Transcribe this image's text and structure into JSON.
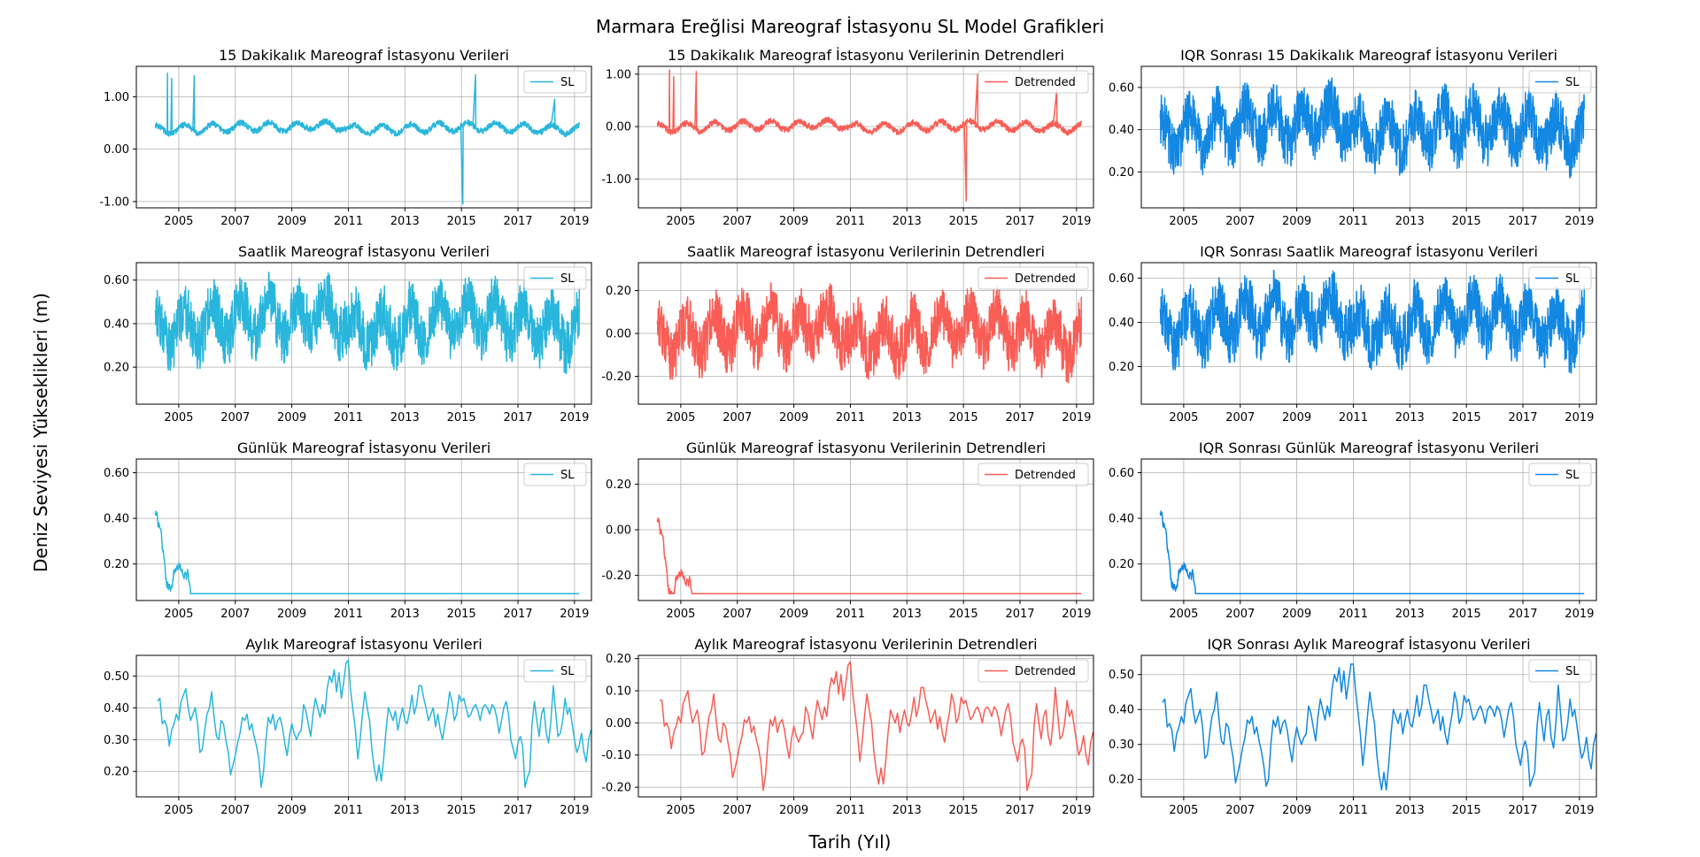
{
  "figure": {
    "title": "Marmara Ereğlisi Mareograf İstasyonu SL Model Grafikleri",
    "xlabel": "Tarih (Yıl)",
    "ylabel": "Deniz Seviyesi Yükseklikleri (m)"
  },
  "colors": {
    "sl": "#29b6dc",
    "detrended": "#f95d55",
    "iqr": "#1388e2"
  },
  "chart_data": [
    {
      "type": "line",
      "title": "15 Dakikalık Mareograf İstasyonu Verileri",
      "legend": "SL",
      "legend_position": "upper right",
      "color": "#29b6dc",
      "grid": true,
      "xlim": [
        2003.5,
        2019.6
      ],
      "ylim": [
        -1.12,
        1.58
      ],
      "yticks": [
        -1.0,
        0.0,
        1.0
      ],
      "ytick_labels": [
        "-1.00",
        "0.00",
        "1.00"
      ],
      "xticks": [
        2005,
        2007,
        2009,
        2011,
        2013,
        2015,
        2017,
        2019
      ],
      "base": 0.4,
      "amp": 0.2,
      "smooth": 1,
      "noise": 0.5,
      "start": 2004.17,
      "end": 2019.17,
      "spikes": [
        [
          2004.6,
          1.45
        ],
        [
          2004.75,
          1.35
        ],
        [
          2005.55,
          1.4
        ],
        [
          2015.05,
          -1.05
        ],
        [
          2015.5,
          1.42
        ],
        [
          2018.3,
          0.95
        ]
      ]
    },
    {
      "type": "line",
      "title": "15 Dakikalık Mareograf İstasyonu Verilerinin Detrendleri",
      "legend": "Detrended",
      "legend_position": "upper right",
      "color": "#f95d55",
      "grid": true,
      "xlim": [
        2003.5,
        2019.6
      ],
      "ylim": [
        -1.55,
        1.15
      ],
      "yticks": [
        -1.0,
        0.0,
        1.0
      ],
      "ytick_labels": [
        "-1.00",
        "0.00",
        "1.00"
      ],
      "xticks": [
        2005,
        2007,
        2009,
        2011,
        2013,
        2015,
        2017,
        2019
      ],
      "base": 0.0,
      "amp": 0.2,
      "smooth": 1,
      "noise": 0.5,
      "start": 2004.17,
      "end": 2019.17,
      "spikes": [
        [
          2004.6,
          1.08
        ],
        [
          2004.75,
          0.95
        ],
        [
          2005.55,
          1.05
        ],
        [
          2015.1,
          -1.42
        ],
        [
          2015.5,
          1.0
        ],
        [
          2018.3,
          0.7
        ]
      ]
    },
    {
      "type": "line",
      "title": "IQR Sonrası 15 Dakikalık Mareograf İstasyonu Verileri",
      "legend": "SL",
      "legend_position": "upper right",
      "color": "#1388e2",
      "grid": true,
      "xlim": [
        2003.5,
        2019.6
      ],
      "ylim": [
        0.03,
        0.7
      ],
      "yticks": [
        0.2,
        0.4,
        0.6
      ],
      "ytick_labels": [
        "0.20",
        "0.40",
        "0.60"
      ],
      "xticks": [
        2005,
        2007,
        2009,
        2011,
        2013,
        2015,
        2017,
        2019
      ],
      "base": 0.4,
      "amp": 0.2,
      "smooth": 1,
      "noise": 1.15,
      "clip": [
        0.05,
        0.66
      ],
      "start": 2004.17,
      "end": 2019.17
    },
    {
      "type": "line",
      "title": "Saatlik Mareograf İstasyonu Verileri",
      "legend": "SL",
      "legend_position": "upper right",
      "color": "#29b6dc",
      "grid": true,
      "xlim": [
        2003.5,
        2019.6
      ],
      "ylim": [
        0.03,
        0.68
      ],
      "yticks": [
        0.2,
        0.4,
        0.6
      ],
      "ytick_labels": [
        "0.20",
        "0.40",
        "0.60"
      ],
      "xticks": [
        2005,
        2007,
        2009,
        2011,
        2013,
        2015,
        2017,
        2019
      ],
      "base": 0.4,
      "amp": 0.2,
      "smooth": 1,
      "noise": 1.15,
      "clip": [
        0.05,
        0.66
      ],
      "start": 2004.17,
      "end": 2019.17
    },
    {
      "type": "line",
      "title": "Saatlik Mareograf İstasyonu Verilerinin Detrendleri",
      "legend": "Detrended",
      "legend_position": "upper right",
      "color": "#f95d55",
      "grid": true,
      "xlim": [
        2003.5,
        2019.6
      ],
      "ylim": [
        -0.33,
        0.33
      ],
      "yticks": [
        -0.2,
        0.0,
        0.2
      ],
      "ytick_labels": [
        "-0.20",
        "0.00",
        "0.20"
      ],
      "xticks": [
        2005,
        2007,
        2009,
        2011,
        2013,
        2015,
        2017,
        2019
      ],
      "base": 0.0,
      "amp": 0.2,
      "smooth": 1,
      "noise": 1.15,
      "clip": [
        -0.3,
        0.3
      ],
      "start": 2004.17,
      "end": 2019.17
    },
    {
      "type": "line",
      "title": "IQR Sonrası Saatlik Mareograf İstasyonu Verileri",
      "legend": "SL",
      "legend_position": "upper right",
      "color": "#1388e2",
      "grid": true,
      "xlim": [
        2003.5,
        2019.6
      ],
      "ylim": [
        0.03,
        0.67
      ],
      "yticks": [
        0.2,
        0.4,
        0.6
      ],
      "ytick_labels": [
        "0.20",
        "0.40",
        "0.60"
      ],
      "xticks": [
        2005,
        2007,
        2009,
        2011,
        2013,
        2015,
        2017,
        2019
      ],
      "base": 0.4,
      "amp": 0.2,
      "smooth": 1,
      "noise": 1.15,
      "clip": [
        0.05,
        0.65
      ],
      "start": 2004.17,
      "end": 2019.17
    },
    {
      "type": "line",
      "title": "Günlük Mareograf İstasyonu Verileri",
      "legend": "SL",
      "legend_position": "upper right",
      "color": "#29b6dc",
      "grid": true,
      "xlim": [
        2003.5,
        2019.6
      ],
      "ylim": [
        0.04,
        0.66
      ],
      "yticks": [
        0.2,
        0.4,
        0.6
      ],
      "ytick_labels": [
        "0.20",
        "0.40",
        "0.60"
      ],
      "xticks": [
        2005,
        2007,
        2009,
        2011,
        2013,
        2015,
        2017,
        2019
      ],
      "base": 0.38,
      "amp": 0.16,
      "smooth": 4,
      "noise": 0.75,
      "clip": [
        0.07,
        0.63
      ],
      "start": 2004.17,
      "end": 2019.17
    },
    {
      "type": "line",
      "title": "Günlük Mareograf İstasyonu Verilerinin Detrendleri",
      "legend": "Detrended",
      "legend_position": "upper right",
      "color": "#f95d55",
      "grid": true,
      "xlim": [
        2003.5,
        2019.6
      ],
      "ylim": [
        -0.31,
        0.31
      ],
      "yticks": [
        -0.2,
        0.0,
        0.2
      ],
      "ytick_labels": [
        "-0.20",
        "0.00",
        "0.20"
      ],
      "xticks": [
        2005,
        2007,
        2009,
        2011,
        2013,
        2015,
        2017,
        2019
      ],
      "base": 0.0,
      "amp": 0.16,
      "smooth": 4,
      "noise": 0.75,
      "clip": [
        -0.28,
        0.28
      ],
      "start": 2004.17,
      "end": 2019.17
    },
    {
      "type": "line",
      "title": "IQR Sonrası Günlük Mareograf İstasyonu Verileri",
      "legend": "SL",
      "legend_position": "upper right",
      "color": "#1388e2",
      "grid": true,
      "xlim": [
        2003.5,
        2019.6
      ],
      "ylim": [
        0.04,
        0.66
      ],
      "yticks": [
        0.2,
        0.4,
        0.6
      ],
      "ytick_labels": [
        "0.20",
        "0.40",
        "0.60"
      ],
      "xticks": [
        2005,
        2007,
        2009,
        2011,
        2013,
        2015,
        2017,
        2019
      ],
      "base": 0.38,
      "amp": 0.16,
      "smooth": 4,
      "noise": 0.75,
      "clip": [
        0.07,
        0.63
      ],
      "start": 2004.17,
      "end": 2019.17
    },
    {
      "type": "line",
      "title": "Aylık Mareograf İstasyonu Verileri",
      "legend": "SL",
      "legend_position": "upper right",
      "color": "#29b6dc",
      "grid": true,
      "xlim": [
        2003.5,
        2019.6
      ],
      "ylim": [
        0.12,
        0.565
      ],
      "yticks": [
        0.2,
        0.3,
        0.4,
        0.5
      ],
      "ytick_labels": [
        "0.20",
        "0.30",
        "0.40",
        "0.50"
      ],
      "xticks": [
        2005,
        2007,
        2009,
        2011,
        2013,
        2015,
        2017,
        2019
      ],
      "x_start": 2004.25,
      "x_step": 0.08333,
      "y": [
        0.42,
        0.43,
        0.35,
        0.36,
        0.34,
        0.28,
        0.33,
        0.35,
        0.38,
        0.36,
        0.42,
        0.44,
        0.46,
        0.4,
        0.36,
        0.38,
        0.4,
        0.35,
        0.26,
        0.27,
        0.33,
        0.38,
        0.4,
        0.45,
        0.37,
        0.31,
        0.3,
        0.36,
        0.35,
        0.3,
        0.26,
        0.19,
        0.22,
        0.25,
        0.29,
        0.32,
        0.37,
        0.36,
        0.38,
        0.33,
        0.35,
        0.31,
        0.28,
        0.24,
        0.15,
        0.2,
        0.3,
        0.37,
        0.35,
        0.38,
        0.33,
        0.36,
        0.37,
        0.34,
        0.29,
        0.25,
        0.31,
        0.35,
        0.32,
        0.3,
        0.32,
        0.33,
        0.41,
        0.39,
        0.35,
        0.31,
        0.38,
        0.43,
        0.4,
        0.37,
        0.41,
        0.38,
        0.46,
        0.5,
        0.48,
        0.52,
        0.45,
        0.51,
        0.43,
        0.48,
        0.54,
        0.55,
        0.45,
        0.39,
        0.33,
        0.24,
        0.3,
        0.38,
        0.45,
        0.4,
        0.36,
        0.27,
        0.21,
        0.17,
        0.22,
        0.17,
        0.24,
        0.33,
        0.4,
        0.38,
        0.36,
        0.39,
        0.33,
        0.37,
        0.4,
        0.36,
        0.35,
        0.39,
        0.44,
        0.38,
        0.41,
        0.47,
        0.47,
        0.43,
        0.4,
        0.36,
        0.38,
        0.4,
        0.34,
        0.38,
        0.33,
        0.3,
        0.35,
        0.39,
        0.45,
        0.42,
        0.36,
        0.38,
        0.44,
        0.42,
        0.43,
        0.4,
        0.37,
        0.38,
        0.4,
        0.41,
        0.39,
        0.36,
        0.4,
        0.41,
        0.4,
        0.38,
        0.41,
        0.4,
        0.37,
        0.32,
        0.36,
        0.4,
        0.42,
        0.38,
        0.3,
        0.27,
        0.24,
        0.29,
        0.31,
        0.28,
        0.15,
        0.18,
        0.2,
        0.35,
        0.42,
        0.36,
        0.31,
        0.38,
        0.4,
        0.32,
        0.29,
        0.36,
        0.47,
        0.39,
        0.31,
        0.32,
        0.36,
        0.43,
        0.38,
        0.4,
        0.35,
        0.3,
        0.26,
        0.28,
        0.32,
        0.26,
        0.23,
        0.3,
        0.33,
        0.31,
        0.28
      ]
    },
    {
      "type": "line",
      "title": "Aylık Mareograf İstasyonu Verilerinin Detrendleri",
      "legend": "Detrended",
      "legend_position": "upper right",
      "color": "#f95d55",
      "grid": true,
      "xlim": [
        2003.5,
        2019.6
      ],
      "ylim": [
        -0.23,
        0.21
      ],
      "yticks": [
        -0.2,
        -0.1,
        0.0,
        0.1,
        0.2
      ],
      "ytick_labels": [
        "-0.20",
        "-0.10",
        "0.00",
        "0.10",
        "0.20"
      ],
      "xticks": [
        2005,
        2007,
        2009,
        2011,
        2013,
        2015,
        2017,
        2019
      ],
      "x_start": 2004.25,
      "x_step": 0.08333,
      "y": [
        0.07,
        0.07,
        -0.01,
        0.0,
        -0.02,
        -0.08,
        -0.03,
        -0.01,
        0.02,
        0.0,
        0.06,
        0.08,
        0.1,
        0.04,
        0.0,
        0.02,
        0.04,
        -0.01,
        -0.1,
        -0.09,
        -0.03,
        0.02,
        0.04,
        0.09,
        0.01,
        -0.05,
        -0.06,
        0.0,
        -0.01,
        -0.06,
        -0.1,
        -0.17,
        -0.14,
        -0.11,
        -0.07,
        -0.04,
        0.01,
        0.0,
        0.02,
        -0.03,
        -0.01,
        -0.05,
        -0.08,
        -0.12,
        -0.21,
        -0.16,
        -0.06,
        0.01,
        -0.01,
        0.02,
        -0.03,
        0.0,
        0.01,
        -0.02,
        -0.07,
        -0.11,
        -0.05,
        -0.01,
        -0.04,
        -0.06,
        -0.04,
        -0.03,
        0.05,
        0.03,
        -0.01,
        -0.05,
        0.02,
        0.07,
        0.04,
        0.01,
        0.05,
        0.02,
        0.1,
        0.14,
        0.12,
        0.16,
        0.09,
        0.15,
        0.07,
        0.12,
        0.18,
        0.19,
        0.09,
        0.03,
        -0.03,
        -0.12,
        -0.06,
        0.02,
        0.09,
        0.04,
        0.0,
        -0.09,
        -0.15,
        -0.19,
        -0.14,
        -0.19,
        -0.12,
        -0.03,
        0.04,
        0.02,
        0.0,
        0.03,
        -0.03,
        0.01,
        0.04,
        0.0,
        -0.01,
        0.03,
        0.08,
        0.02,
        0.05,
        0.11,
        0.11,
        0.07,
        0.04,
        0.0,
        0.02,
        0.04,
        -0.02,
        0.02,
        -0.03,
        -0.06,
        -0.01,
        0.03,
        0.09,
        0.06,
        0.0,
        0.02,
        0.08,
        0.06,
        0.07,
        0.04,
        0.01,
        0.02,
        0.04,
        0.05,
        0.03,
        0.0,
        0.04,
        0.05,
        0.04,
        0.02,
        0.05,
        0.04,
        0.01,
        -0.04,
        0.0,
        0.04,
        0.06,
        0.02,
        -0.06,
        -0.09,
        -0.12,
        -0.07,
        -0.05,
        -0.08,
        -0.21,
        -0.18,
        -0.16,
        -0.01,
        0.06,
        0.0,
        -0.05,
        0.02,
        0.04,
        -0.04,
        -0.07,
        0.0,
        0.11,
        0.03,
        -0.05,
        -0.04,
        0.0,
        0.07,
        0.02,
        0.04,
        -0.01,
        -0.06,
        -0.1,
        -0.08,
        -0.04,
        -0.1,
        -0.13,
        -0.06,
        -0.03,
        -0.05,
        -0.08
      ]
    },
    {
      "type": "line",
      "title": "IQR Sonrası Aylık Mareograf İstasyonu Verileri",
      "legend": "SL",
      "legend_position": "upper right",
      "color": "#1388e2",
      "grid": true,
      "xlim": [
        2003.5,
        2019.6
      ],
      "ylim": [
        0.15,
        0.555
      ],
      "yticks": [
        0.2,
        0.3,
        0.4,
        0.5
      ],
      "ytick_labels": [
        "0.20",
        "0.30",
        "0.40",
        "0.50"
      ],
      "xticks": [
        2005,
        2007,
        2009,
        2011,
        2013,
        2015,
        2017,
        2019
      ],
      "x_start": 2004.25,
      "x_step": 0.08333,
      "y": [
        0.42,
        0.43,
        0.35,
        0.36,
        0.34,
        0.28,
        0.33,
        0.35,
        0.38,
        0.36,
        0.42,
        0.44,
        0.46,
        0.4,
        0.36,
        0.38,
        0.4,
        0.35,
        0.26,
        0.27,
        0.33,
        0.38,
        0.4,
        0.45,
        0.37,
        0.31,
        0.3,
        0.36,
        0.35,
        0.3,
        0.26,
        0.19,
        0.22,
        0.25,
        0.29,
        0.32,
        0.37,
        0.36,
        0.38,
        0.33,
        0.35,
        0.31,
        0.28,
        0.24,
        0.18,
        0.2,
        0.3,
        0.37,
        0.35,
        0.38,
        0.33,
        0.36,
        0.37,
        0.34,
        0.29,
        0.25,
        0.31,
        0.35,
        0.32,
        0.3,
        0.32,
        0.33,
        0.41,
        0.39,
        0.35,
        0.31,
        0.38,
        0.43,
        0.4,
        0.37,
        0.41,
        0.38,
        0.46,
        0.5,
        0.48,
        0.52,
        0.45,
        0.51,
        0.43,
        0.48,
        0.53,
        0.53,
        0.45,
        0.39,
        0.33,
        0.24,
        0.3,
        0.38,
        0.45,
        0.4,
        0.36,
        0.27,
        0.21,
        0.17,
        0.22,
        0.17,
        0.24,
        0.33,
        0.4,
        0.38,
        0.36,
        0.39,
        0.33,
        0.37,
        0.4,
        0.36,
        0.35,
        0.39,
        0.44,
        0.38,
        0.41,
        0.47,
        0.47,
        0.43,
        0.4,
        0.36,
        0.38,
        0.4,
        0.34,
        0.38,
        0.33,
        0.3,
        0.35,
        0.39,
        0.45,
        0.42,
        0.36,
        0.38,
        0.44,
        0.42,
        0.43,
        0.4,
        0.37,
        0.38,
        0.4,
        0.41,
        0.39,
        0.36,
        0.4,
        0.41,
        0.4,
        0.38,
        0.41,
        0.4,
        0.37,
        0.32,
        0.36,
        0.4,
        0.42,
        0.38,
        0.3,
        0.27,
        0.24,
        0.29,
        0.31,
        0.28,
        0.18,
        0.2,
        0.22,
        0.35,
        0.42,
        0.36,
        0.31,
        0.38,
        0.4,
        0.32,
        0.29,
        0.36,
        0.47,
        0.39,
        0.31,
        0.32,
        0.36,
        0.43,
        0.38,
        0.4,
        0.35,
        0.3,
        0.26,
        0.28,
        0.32,
        0.26,
        0.23,
        0.3,
        0.33,
        0.31,
        0.28
      ]
    }
  ]
}
